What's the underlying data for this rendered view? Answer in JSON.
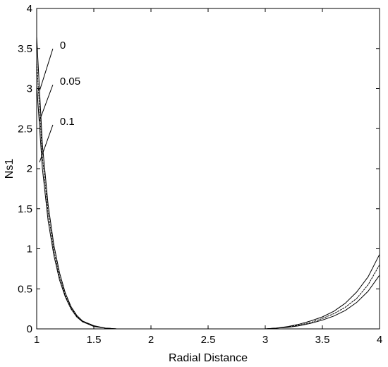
{
  "chart_data": {
    "type": "line",
    "title": "",
    "xlabel": "Radial Distance",
    "ylabel": "Ns1",
    "xlim": [
      1,
      4
    ],
    "ylim": [
      0,
      4
    ],
    "grid": false,
    "xticks": [
      "1",
      "1.5",
      "2",
      "2.5",
      "3",
      "3.5",
      "4"
    ],
    "yticks": [
      "0",
      "0.5",
      "1",
      "1.5",
      "2",
      "2.5",
      "3",
      "3.5",
      "4"
    ],
    "line_color": "#000000",
    "series": [
      {
        "name": "0",
        "x": [
          1.0,
          1.05,
          1.1,
          1.15,
          1.2,
          1.25,
          1.3,
          1.35,
          1.4,
          1.5,
          1.6,
          1.7,
          2.0,
          2.5,
          3.0,
          3.1,
          3.2,
          3.3,
          3.4,
          3.5,
          3.6,
          3.7,
          3.8,
          3.9,
          4.0
        ],
        "y": [
          3.65,
          2.3,
          1.55,
          1.05,
          0.7,
          0.45,
          0.28,
          0.17,
          0.1,
          0.04,
          0.01,
          0.0,
          0.0,
          0.0,
          0.0,
          0.01,
          0.03,
          0.06,
          0.1,
          0.15,
          0.22,
          0.32,
          0.46,
          0.65,
          0.93
        ]
      },
      {
        "name": "0.05",
        "x": [
          1.0,
          1.05,
          1.1,
          1.15,
          1.2,
          1.25,
          1.3,
          1.35,
          1.4,
          1.5,
          1.6,
          1.7,
          2.0,
          2.5,
          3.0,
          3.1,
          3.2,
          3.3,
          3.4,
          3.5,
          3.6,
          3.7,
          3.8,
          3.9,
          4.0
        ],
        "y": [
          3.35,
          2.15,
          1.45,
          0.98,
          0.65,
          0.42,
          0.26,
          0.16,
          0.09,
          0.035,
          0.01,
          0.0,
          0.0,
          0.0,
          0.0,
          0.01,
          0.025,
          0.05,
          0.08,
          0.13,
          0.19,
          0.27,
          0.38,
          0.55,
          0.8
        ]
      },
      {
        "name": "0.1",
        "x": [
          1.0,
          1.05,
          1.1,
          1.15,
          1.2,
          1.25,
          1.3,
          1.35,
          1.4,
          1.5,
          1.6,
          1.7,
          2.0,
          2.5,
          3.0,
          3.1,
          3.2,
          3.3,
          3.4,
          3.5,
          3.6,
          3.7,
          3.8,
          3.9,
          4.0
        ],
        "y": [
          3.05,
          2.0,
          1.35,
          0.92,
          0.61,
          0.4,
          0.25,
          0.15,
          0.09,
          0.03,
          0.01,
          0.0,
          0.0,
          0.0,
          0.0,
          0.01,
          0.02,
          0.04,
          0.07,
          0.11,
          0.16,
          0.23,
          0.33,
          0.47,
          0.67
        ]
      }
    ],
    "annotations": [
      {
        "text": "0",
        "x": 1.0,
        "y": 2.97,
        "lx": 1.45,
        "ly": 3.55
      },
      {
        "text": "0.05",
        "x": 1.0,
        "y": 2.6,
        "lx": 1.45,
        "ly": 3.1
      },
      {
        "text": "0.1",
        "x": 1.0,
        "y": 2.08,
        "lx": 1.45,
        "ly": 2.6
      }
    ]
  }
}
